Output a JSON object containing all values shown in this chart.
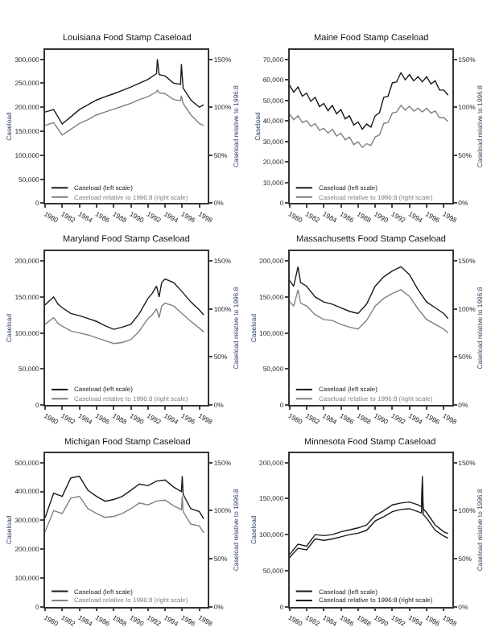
{
  "chart_data": [
    {
      "type": "line",
      "title": "Louisiana Food Stamp Caseload",
      "ylabel": "Caseload",
      "y2label": "Caseload relative to 1996:8",
      "legend": "bottom left",
      "xlim": [
        1980,
        1999
      ],
      "xticks": [
        1980,
        1982,
        1984,
        1986,
        1988,
        1990,
        1992,
        1994,
        1996,
        1998
      ],
      "ylim": [
        0,
        320000
      ],
      "yticks": [
        {
          "value": 0,
          "label": "0"
        },
        {
          "value": 50000,
          "label": "50,000"
        },
        {
          "value": 100000,
          "label": "100,000"
        },
        {
          "value": 150000,
          "label": "150,000"
        },
        {
          "value": 200000,
          "label": "200,000"
        },
        {
          "value": 250000,
          "label": "250,000"
        },
        {
          "value": 300000,
          "label": "300,000"
        }
      ],
      "y2lim": [
        0,
        160
      ],
      "y2ticks": [
        {
          "value": 0,
          "label": "0%"
        },
        {
          "value": 50,
          "label": "50%"
        },
        {
          "value": 100,
          "label": "100%"
        },
        {
          "value": 150,
          "label": "150%"
        }
      ],
      "series": [
        {
          "name": "Caseload relative to 1996:8 (right scale)",
          "color": "#808080",
          "axis": "y2",
          "x": [
            1980,
            1981,
            1982,
            1983,
            1984,
            1985,
            1986,
            1987,
            1988,
            1989,
            1990,
            1991,
            1992,
            1993,
            1993.1,
            1993.3,
            1994,
            1995,
            1995.8,
            1995.9,
            1996.1,
            1997,
            1998,
            1998.5
          ],
          "values": [
            81,
            84,
            71,
            77,
            83,
            87,
            92,
            95,
            98,
            101,
            104,
            108,
            111,
            116,
            118,
            115,
            114,
            108,
            107,
            112,
            104,
            92,
            83,
            81
          ]
        },
        {
          "name": "Caseload (left scale)",
          "color": "#1a1a1a",
          "x": [
            1980,
            1981,
            1982,
            1983,
            1984,
            1985,
            1986,
            1987,
            1988,
            1989,
            1990,
            1991,
            1992,
            1993,
            1993.1,
            1993.3,
            1994,
            1995,
            1995.8,
            1995.9,
            1996.1,
            1997,
            1998,
            1998.5
          ],
          "values": [
            190000,
            195000,
            165000,
            180000,
            195000,
            205000,
            215000,
            222000,
            228000,
            235000,
            242000,
            250000,
            258000,
            270000,
            300000,
            268000,
            265000,
            250000,
            248000,
            290000,
            240000,
            215000,
            200000,
            205000
          ]
        }
      ]
    },
    {
      "type": "line",
      "title": "Maine Food Stamp Caseload",
      "ylabel": "Caseload",
      "y2label": "Caseload relative to 1996:8",
      "legend": "bottom left",
      "xlim": [
        1980,
        1999
      ],
      "xticks": [
        1980,
        1982,
        1984,
        1986,
        1988,
        1990,
        1992,
        1994,
        1996,
        1998
      ],
      "ylim": [
        0,
        74667
      ],
      "yticks": [
        {
          "value": 0,
          "label": "0"
        },
        {
          "value": 10000,
          "label": "10,000"
        },
        {
          "value": 20000,
          "label": "20,000"
        },
        {
          "value": 30000,
          "label": "30,000"
        },
        {
          "value": 40000,
          "label": "40,000"
        },
        {
          "value": 50000,
          "label": "50,000"
        },
        {
          "value": 60000,
          "label": "60,000"
        },
        {
          "value": 70000,
          "label": "70,000"
        }
      ],
      "y2lim": [
        0,
        160
      ],
      "y2ticks": [
        {
          "value": 0,
          "label": "0%"
        },
        {
          "value": 50,
          "label": "50%"
        },
        {
          "value": 100,
          "label": "100%"
        },
        {
          "value": 150,
          "label": "150%"
        }
      ],
      "series": [
        {
          "name": "Caseload relative to 1996:8 (right scale)",
          "color": "#808080",
          "axis": "y2",
          "x": [
            1980,
            1980.5,
            1981,
            1981.5,
            1982,
            1982.5,
            1983,
            1983.5,
            1984,
            1984.5,
            1985,
            1985.5,
            1986,
            1986.5,
            1987,
            1987.5,
            1988,
            1988.5,
            1989,
            1989.5,
            1990,
            1990.5,
            1991,
            1991.5,
            1992,
            1992.5,
            1993,
            1993.5,
            1994,
            1994.5,
            1995,
            1995.5,
            1996,
            1996.5,
            1997,
            1997.5,
            1998,
            1998.5
          ],
          "values": [
            93,
            87,
            91,
            84,
            86,
            80,
            83,
            76,
            78,
            73,
            77,
            70,
            73,
            66,
            69,
            61,
            64,
            58,
            62,
            60,
            69,
            71,
            83,
            84,
            94,
            95,
            102,
            97,
            101,
            96,
            99,
            95,
            99,
            94,
            96,
            89,
            89,
            85
          ]
        },
        {
          "name": "Caseload (left scale)",
          "color": "#1a1a1a",
          "x": [
            1980,
            1980.5,
            1981,
            1981.5,
            1982,
            1982.5,
            1983,
            1983.5,
            1984,
            1984.5,
            1985,
            1985.5,
            1986,
            1986.5,
            1987,
            1987.5,
            1988,
            1988.5,
            1989,
            1989.5,
            1990,
            1990.5,
            1991,
            1991.5,
            1992,
            1992.5,
            1993,
            1993.5,
            1994,
            1994.5,
            1995,
            1995.5,
            1996,
            1996.5,
            1997,
            1997.5,
            1998,
            1998.5
          ],
          "values": [
            57500,
            54000,
            56500,
            52000,
            53500,
            49500,
            51500,
            47000,
            48500,
            45000,
            47500,
            43500,
            45500,
            41000,
            42500,
            38000,
            39500,
            36000,
            38500,
            37000,
            42500,
            44000,
            51500,
            52000,
            58500,
            59000,
            63500,
            60000,
            62500,
            59500,
            61500,
            59000,
            61500,
            58000,
            59500,
            55000,
            55000,
            52500
          ]
        }
      ]
    },
    {
      "type": "line",
      "title": "Maryland Food Stamp Caseload",
      "ylabel": "Caseload",
      "y2label": "Caseload relative to 1996:8",
      "legend": "bottom left",
      "xlim": [
        1980,
        1999
      ],
      "xticks": [
        1980,
        1982,
        1984,
        1986,
        1988,
        1990,
        1992,
        1994,
        1996,
        1998
      ],
      "ylim": [
        0,
        213333
      ],
      "yticks": [
        {
          "value": 0,
          "label": "0"
        },
        {
          "value": 50000,
          "label": "50,000"
        },
        {
          "value": 100000,
          "label": "100,000"
        },
        {
          "value": 150000,
          "label": "150,000"
        },
        {
          "value": 200000,
          "label": "200,000"
        }
      ],
      "y2lim": [
        0,
        160
      ],
      "y2ticks": [
        {
          "value": 0,
          "label": "0%"
        },
        {
          "value": 50,
          "label": "50%"
        },
        {
          "value": 100,
          "label": "100%"
        },
        {
          "value": 150,
          "label": "150%"
        }
      ],
      "series": [
        {
          "name": "Caseload relative to 1996:8 (right scale)",
          "color": "#808080",
          "axis": "y2",
          "x": [
            1980,
            1981,
            1981.5,
            1982,
            1983,
            1984,
            1985,
            1986,
            1987,
            1988,
            1989,
            1990,
            1991,
            1992,
            1992.5,
            1993,
            1993.3,
            1993.6,
            1994,
            1995,
            1996,
            1997,
            1998,
            1998.5
          ],
          "values": [
            84,
            91,
            85,
            82,
            77,
            75,
            73,
            70,
            67,
            64,
            65,
            68,
            77,
            90,
            94,
            100,
            91,
            103,
            106,
            103,
            95,
            87,
            80,
            76
          ]
        },
        {
          "name": "Caseload (left scale)",
          "color": "#1a1a1a",
          "x": [
            1980,
            1981,
            1981.5,
            1982,
            1983,
            1984,
            1985,
            1986,
            1987,
            1988,
            1989,
            1990,
            1991,
            1992,
            1992.5,
            1993,
            1993.3,
            1993.6,
            1994,
            1995,
            1996,
            1997,
            1998,
            1998.5
          ],
          "values": [
            139000,
            150000,
            140000,
            135000,
            127000,
            124000,
            120000,
            116000,
            110000,
            105000,
            108000,
            112000,
            127000,
            148000,
            155000,
            165000,
            150000,
            170000,
            175000,
            170000,
            157000,
            143000,
            132000,
            125000
          ]
        }
      ]
    },
    {
      "type": "line",
      "title": "Massachusetts Food Stamp Caseload",
      "ylabel": "Caseload",
      "y2label": "Caseload relative to 1996:8",
      "legend": "bottom left",
      "xlim": [
        1980,
        1999
      ],
      "xticks": [
        1980,
        1982,
        1984,
        1986,
        1988,
        1990,
        1992,
        1994,
        1996,
        1998
      ],
      "ylim": [
        0,
        213333
      ],
      "yticks": [
        {
          "value": 0,
          "label": "0"
        },
        {
          "value": 50000,
          "label": "50,000"
        },
        {
          "value": 100000,
          "label": "100,000"
        },
        {
          "value": 150000,
          "label": "150,000"
        },
        {
          "value": 200000,
          "label": "200,000"
        }
      ],
      "y2lim": [
        0,
        160
      ],
      "y2ticks": [
        {
          "value": 0,
          "label": "0%"
        },
        {
          "value": 50,
          "label": "50%"
        },
        {
          "value": 100,
          "label": "100%"
        },
        {
          "value": 150,
          "label": "150%"
        }
      ],
      "series": [
        {
          "name": "Caseload relative to 1996:8 (right scale)",
          "color": "#808080",
          "axis": "y2",
          "x": [
            1980,
            1980.5,
            1981,
            1981.3,
            1982,
            1983,
            1984,
            1985,
            1986,
            1987,
            1988,
            1989,
            1990,
            1991,
            1992,
            1993,
            1994,
            1995,
            1996,
            1997,
            1998,
            1998.5
          ],
          "values": [
            108,
            103,
            120,
            106,
            103,
            94,
            89,
            88,
            84,
            81,
            79,
            88,
            103,
            111,
            116,
            120,
            113,
            100,
            89,
            84,
            79,
            75
          ]
        },
        {
          "name": "Caseload (left scale)",
          "color": "#1a1a1a",
          "x": [
            1980,
            1980.5,
            1981,
            1981.3,
            1982,
            1983,
            1984,
            1985,
            1986,
            1987,
            1988,
            1989,
            1990,
            1991,
            1992,
            1993,
            1994,
            1995,
            1996,
            1997,
            1998,
            1998.5
          ],
          "values": [
            173000,
            165000,
            192000,
            170000,
            165000,
            150000,
            143000,
            140000,
            135000,
            130000,
            127000,
            140000,
            165000,
            178000,
            186000,
            192000,
            181000,
            160000,
            143000,
            135000,
            127000,
            120000
          ]
        }
      ]
    },
    {
      "type": "line",
      "title": "Michigan Food Stamp Caseload",
      "ylabel": "Caseload",
      "y2label": "Caseload relative to 1996:8",
      "legend": "bottom left",
      "xlim": [
        1980,
        1999
      ],
      "xticks": [
        1980,
        1982,
        1984,
        1986,
        1988,
        1990,
        1992,
        1994,
        1996,
        1998
      ],
      "ylim": [
        0,
        533333
      ],
      "yticks": [
        {
          "value": 0,
          "label": "0"
        },
        {
          "value": 100000,
          "label": "100,000"
        },
        {
          "value": 200000,
          "label": "200,000"
        },
        {
          "value": 300000,
          "label": "300,000"
        },
        {
          "value": 400000,
          "label": "400,000"
        },
        {
          "value": 500000,
          "label": "500,000"
        }
      ],
      "y2lim": [
        0,
        160
      ],
      "y2ticks": [
        {
          "value": 0,
          "label": "0%"
        },
        {
          "value": 50,
          "label": "50%"
        },
        {
          "value": 100,
          "label": "100%"
        },
        {
          "value": 150,
          "label": "150%"
        }
      ],
      "series": [
        {
          "name": "Caseload relative to 1996:8 (right scale)",
          "color": "#808080",
          "axis": "y2",
          "x": [
            1980,
            1981,
            1982,
            1983,
            1984,
            1985,
            1986,
            1987,
            1988,
            1989,
            1990,
            1991,
            1992,
            1993,
            1994,
            1995,
            1995.9,
            1996,
            1996.1,
            1997,
            1998,
            1998.5
          ],
          "values": [
            78,
            100,
            97,
            113,
            115,
            102,
            97,
            93,
            94,
            97,
            102,
            108,
            106,
            110,
            111,
            105,
            101,
            115,
            99,
            86,
            84,
            77
          ]
        },
        {
          "name": "Caseload (left scale)",
          "color": "#1a1a1a",
          "x": [
            1980,
            1981,
            1982,
            1983,
            1984,
            1985,
            1986,
            1987,
            1988,
            1989,
            1990,
            1991,
            1992,
            1993,
            1994,
            1995,
            1995.9,
            1996,
            1996.1,
            1997,
            1998,
            1998.5
          ],
          "values": [
            309000,
            394000,
            383000,
            447000,
            453000,
            404000,
            383000,
            366000,
            372000,
            383000,
            404000,
            426000,
            420000,
            436000,
            440000,
            415000,
            400000,
            453000,
            390000,
            340000,
            330000,
            305000
          ]
        }
      ]
    },
    {
      "type": "line",
      "title": "Minnesota Food Stamp Caseload",
      "ylabel": "Caseload",
      "y2label": "Caseload relative to 1996:8",
      "legend": "bottom left",
      "xlim": [
        1980,
        1999
      ],
      "xticks": [
        1980,
        1982,
        1984,
        1986,
        1988,
        1990,
        1992,
        1994,
        1996,
        1998
      ],
      "ylim": [
        0,
        213333
      ],
      "yticks": [
        {
          "value": 0,
          "label": "0"
        },
        {
          "value": 50000,
          "label": "50,000"
        },
        {
          "value": 100000,
          "label": "100,000"
        },
        {
          "value": 150000,
          "label": "150,000"
        },
        {
          "value": 200000,
          "label": "200,000"
        }
      ],
      "y2lim": [
        0,
        160
      ],
      "y2ticks": [
        {
          "value": 0,
          "label": "0%"
        },
        {
          "value": 50,
          "label": "50%"
        },
        {
          "value": 100,
          "label": "100%"
        },
        {
          "value": 150,
          "label": "150%"
        }
      ],
      "series": [
        {
          "name": "Caseload relative to 1996:8 (right scale)",
          "color": "#1a1a1a",
          "axis": "y2",
          "x": [
            1980,
            1981,
            1982,
            1983,
            1984,
            1985,
            1986,
            1987,
            1988,
            1989,
            1990,
            1991,
            1992,
            1993,
            1994,
            1995,
            1995.4,
            1995.5,
            1995.6,
            1996,
            1997,
            1998,
            1998.5
          ],
          "values": [
            54,
            65,
            63,
            75,
            74,
            75,
            78,
            80,
            82,
            85,
            95,
            100,
            106,
            108,
            109,
            106,
            104,
            136,
            102,
            98,
            85,
            78,
            76
          ]
        },
        {
          "name": "Caseload (left scale)",
          "color": "#1a1a1a",
          "x": [
            1980,
            1981,
            1982,
            1983,
            1984,
            1985,
            1986,
            1987,
            1988,
            1989,
            1990,
            1991,
            1992,
            1993,
            1994,
            1995,
            1995.4,
            1995.5,
            1995.6,
            1996,
            1997,
            1998,
            1998.5
          ],
          "values": [
            68000,
            81000,
            79000,
            94000,
            92000,
            94000,
            97000,
            100000,
            102000,
            106000,
            119000,
            125000,
            132000,
            135000,
            136000,
            132000,
            130000,
            170000,
            128000,
            123000,
            106000,
            98000,
            95000
          ]
        }
      ]
    }
  ]
}
